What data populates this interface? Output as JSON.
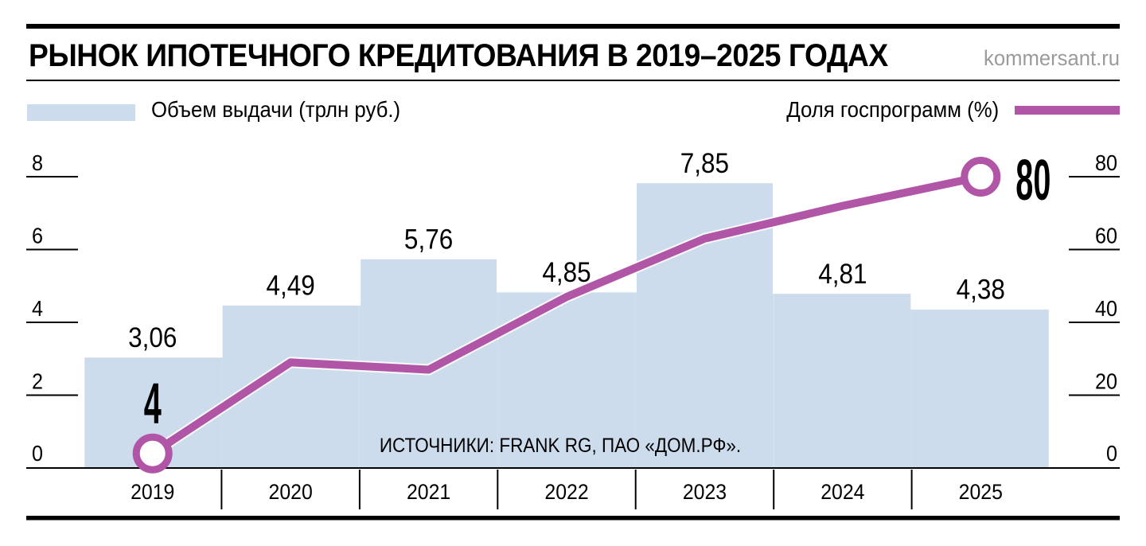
{
  "header": {
    "title": "РЫНОК ИПОТЕЧНОГО КРЕДИТОВАНИЯ В 2019–2025 ГОДАХ",
    "site": "kommersant.ru"
  },
  "legend": {
    "bars_label": "Объем выдачи (трлн руб.)",
    "line_label": "Доля госпрограмм (%)"
  },
  "source": "ИСТОЧНИКИ: FRANK RG, ПАО «ДОМ.РФ».",
  "colors": {
    "bar_fill": "#cddcec",
    "line": "#b155a6",
    "axis": "#000000",
    "site_text": "#9b9b9b",
    "marker_fill": "#ffffff"
  },
  "chart_data": {
    "type": "combo: bar + line",
    "categories": [
      "2019",
      "2020",
      "2021",
      "2022",
      "2023",
      "2024",
      "2025"
    ],
    "series": [
      {
        "name": "Объем выдачи (трлн руб.)",
        "type": "bar",
        "values": [
          3.06,
          4.49,
          5.76,
          4.85,
          7.85,
          4.81,
          4.38
        ],
        "labels": [
          "3,06",
          "4,49",
          "5,76",
          "4,85",
          "7,85",
          "4,81",
          "4,38"
        ]
      },
      {
        "name": "Доля госпрограмм (%)",
        "type": "line",
        "values": [
          4,
          29,
          27,
          47,
          63,
          72,
          80
        ],
        "labeled_points": [
          {
            "index": 0,
            "label": "4",
            "position": "above"
          },
          {
            "index": 6,
            "label": "80",
            "position": "right"
          }
        ]
      }
    ],
    "left_axis": {
      "title": "трлн руб.",
      "ticks": [
        0,
        2,
        4,
        6,
        8
      ],
      "range": [
        0,
        8
      ]
    },
    "right_axis": {
      "title": "%",
      "ticks": [
        0,
        20,
        40,
        60,
        80
      ],
      "range": [
        0,
        80
      ]
    },
    "grid": false,
    "legend_position": "top"
  }
}
